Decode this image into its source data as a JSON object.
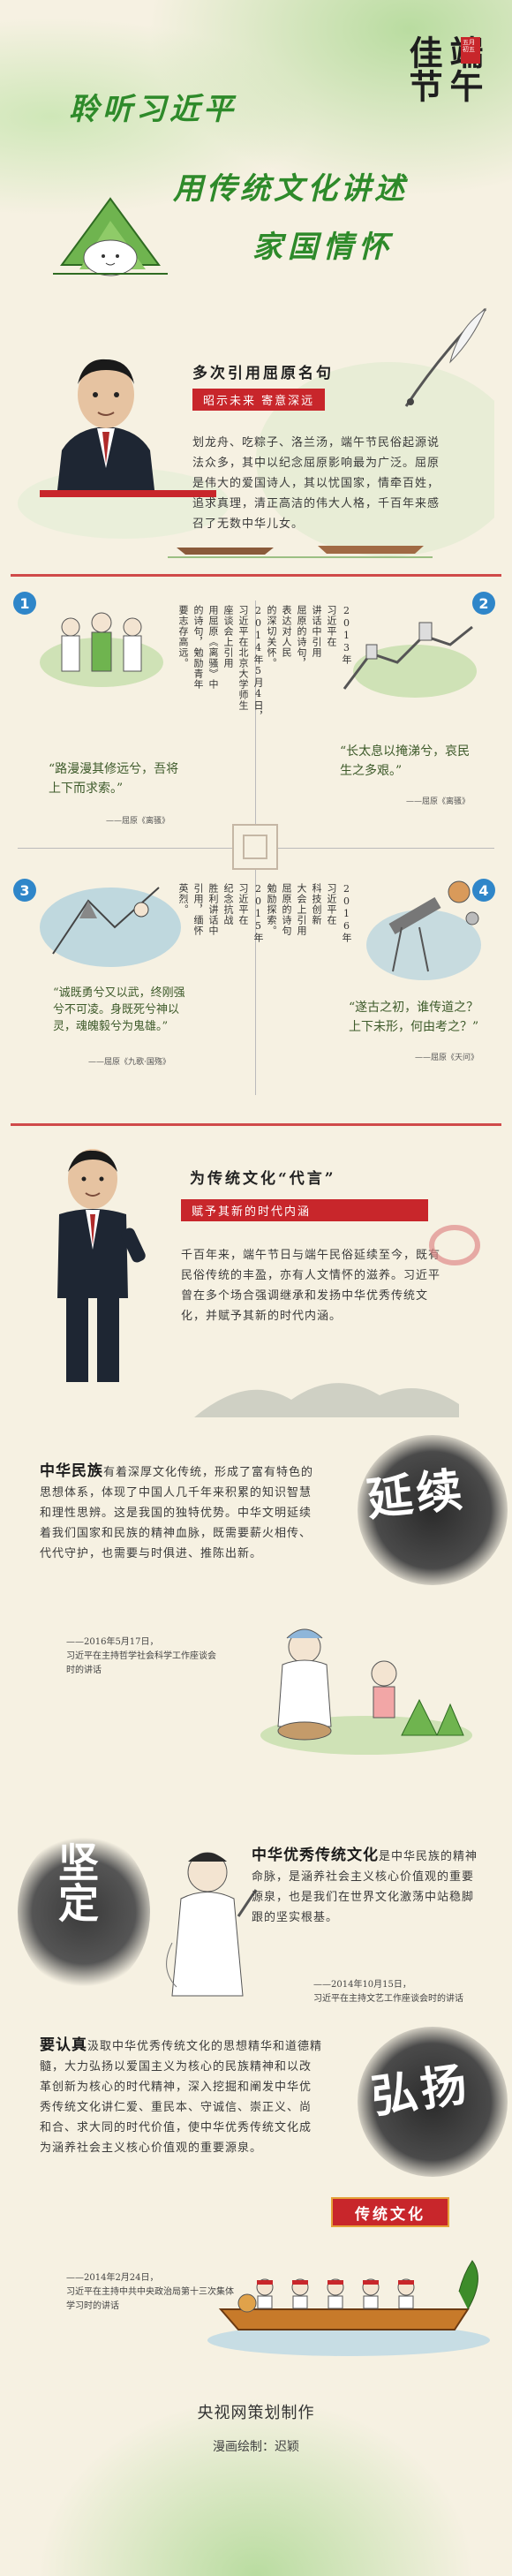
{
  "header": {
    "title_part1": "聆听习近平",
    "title_part2": "用传统文化讲述",
    "title_part3": "家国情怀",
    "seal_text": "端午佳节",
    "seal_small": "五月初五"
  },
  "section1": {
    "heading": "多次引用屈原名句",
    "subheading": "昭示未来 寄意深远",
    "paragraph": "划龙舟、吃粽子、洛兰汤，端午节民俗起源说法众多，其中以纪念屈原影响最为广泛。屈原是伟大的爱国诗人，其以忧国家，情牵百姓，追求真理，清正高洁的伟大人格，千百年来感召了无数中华儿女。"
  },
  "quotes": [
    {
      "num": "1",
      "quote": "“路漫漫其修远兮，吾将上下而求索。”",
      "source": "——屈原《离骚》",
      "col_lines": [
        "2014年5月4日，",
        "习近平在北京大学师生",
        "座谈会上引用",
        "用屈原《离骚》中",
        "的诗句，勉励青年",
        "要志存高远。"
      ]
    },
    {
      "num": "2",
      "quote": "“长太息以掩涕兮，哀民生之多艰。”",
      "source": "——屈原《离骚》",
      "col_lines": [
        "2013年",
        "习近平在",
        "讲话中引用",
        "屈原的诗句，",
        "表达对人民",
        "的深切关怀。"
      ]
    },
    {
      "num": "3",
      "quote": "“诚既勇兮又以武，终刚强兮不可凌。身既死兮神以灵，魂魄毅兮为鬼雄。”",
      "source": "——屈原《九歌·国殇》",
      "col_lines": [
        "2015年",
        "习近平在",
        "纪念抗战",
        "胜利讲话中",
        "引用，缅怀",
        "英烈。"
      ]
    },
    {
      "num": "4",
      "quote": "“遂古之初，谁传道之？上下未形，何由考之？”",
      "source": "——屈原《天问》",
      "col_lines": [
        "2016年",
        "习近平在",
        "科技创新",
        "大会上引用",
        "屈原的诗句",
        "勉励探索。"
      ]
    }
  ],
  "section2": {
    "heading": "为传统文化“代言”",
    "subheading": "赋予其新的时代内涵",
    "paragraph": "千百年来，端午节日与端午民俗延续至今，既有民俗传统的丰盈，亦有人文情怀的滋养。习近平曾在多个场合强调继承和发扬中华优秀传统文化，并赋予其新的时代内涵。"
  },
  "block1": {
    "lead": "中华民族",
    "text": "有着深厚文化传统，形成了富有特色的思想体系，体现了中国人几千年来积累的知识智慧和理性思辨。这是我国的独特优势。中华文明延续着我们国家和民族的精神血脉，既需要薪火相传、代代守护，也需要与时俱进、推陈出新。",
    "sign1": "——2016年5月17日，",
    "sign2": "习近平在主持哲学社会科学工作座谈会时的讲话",
    "brush": "延续"
  },
  "block2": {
    "lead": "中华优秀传统文化",
    "text": "是中华民族的精神命脉，是涵养社会主义核心价值观的重要源泉，也是我们在世界文化激荡中站稳脚跟的坚实根基。",
    "sign1": "——2014年10月15日，",
    "sign2": "习近平在主持文艺工作座谈会时的讲话",
    "brush": "坚定"
  },
  "block3": {
    "lead": "要认真",
    "text": "汲取中华优秀传统文化的思想精华和道德精髓，大力弘扬以爱国主义为核心的民族精神和以改革创新为核心的时代精神，深入挖掘和阐发中华优秀传统文化讲仁爱、重民本、守诚信、崇正义、尚和合、求大同的时代价值，使中华优秀传统文化成为涵养社会主义核心价值观的重要源泉。",
    "sign1": "——2014年2月24日，",
    "sign2": "习近平在主持中共中央政治局第十三次集体学习时的讲话",
    "brush": "弘扬",
    "banner": "传统文化"
  },
  "footer": {
    "producer": "央视网策划制作",
    "illustrator": "漫画绘制：迟颖"
  },
  "colors": {
    "accent_red": "#c8262b",
    "accent_green": "#3d8c2a",
    "accent_blue": "#2f86c9",
    "paper": "#f6f1e2"
  }
}
